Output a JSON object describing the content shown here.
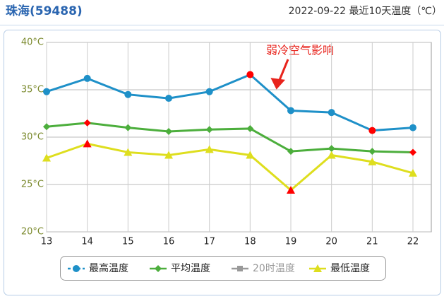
{
  "chart_data": {
    "type": "line",
    "title": "珠海(59488)",
    "subtitle": "2022-09-22 最近10天温度（℃）",
    "annotation": "弱冷空气影响",
    "categories": [
      "13",
      "14",
      "15",
      "16",
      "17",
      "18",
      "19",
      "20",
      "21",
      "22"
    ],
    "ylim": [
      20,
      40
    ],
    "yticks": [
      {
        "value": 20,
        "label": "20°C"
      },
      {
        "value": 25,
        "label": "25°C"
      },
      {
        "value": 30,
        "label": "30°C"
      },
      {
        "value": 35,
        "label": "35°C"
      },
      {
        "value": 40,
        "label": "40°C"
      }
    ],
    "grid": true,
    "legend": "bottom",
    "series": [
      {
        "name": "最高温度",
        "color": "#1e90c8",
        "marker": "circle",
        "values": [
          34.8,
          36.2,
          34.5,
          34.1,
          34.8,
          36.6,
          32.8,
          32.6,
          30.7,
          31.0
        ],
        "point_colors": [
          null,
          null,
          null,
          null,
          null,
          "#ff0000",
          null,
          null,
          "#ff0000",
          null
        ]
      },
      {
        "name": "平均温度",
        "color": "#4cae3c",
        "marker": "diamond",
        "values": [
          31.1,
          31.5,
          31.0,
          30.6,
          30.8,
          30.9,
          28.5,
          28.8,
          28.5,
          28.4
        ],
        "point_colors": [
          null,
          "#ff0000",
          null,
          null,
          null,
          null,
          null,
          null,
          null,
          "#ff0000"
        ]
      },
      {
        "name": "20时温度",
        "color": "#999999",
        "marker": "square",
        "hidden": true,
        "values": [
          null,
          null,
          null,
          null,
          null,
          null,
          null,
          null,
          null,
          null
        ]
      },
      {
        "name": "最低温度",
        "color": "#dede1e",
        "marker": "triangle",
        "values": [
          27.8,
          29.3,
          28.4,
          28.1,
          28.7,
          28.1,
          24.4,
          28.1,
          27.4,
          26.2
        ],
        "point_colors": [
          null,
          "#ff0000",
          null,
          null,
          null,
          null,
          "#ff0000",
          null,
          null,
          null
        ]
      }
    ]
  }
}
